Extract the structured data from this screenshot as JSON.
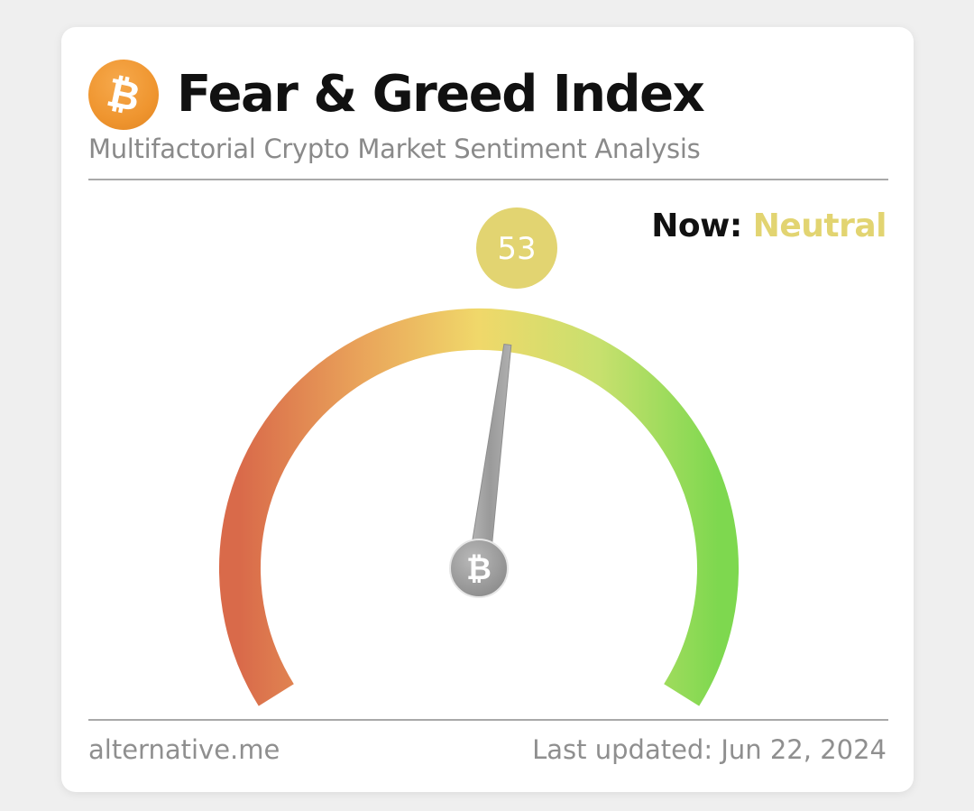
{
  "header": {
    "logo_icon": "bitcoin-icon",
    "logo_symbol": "₿",
    "title": "Fear & Greed Index",
    "subtitle": "Multifactorial Crypto Market Sentiment Analysis"
  },
  "status": {
    "now_label": "Now:",
    "now_value": "Neutral",
    "now_color": "#e2d471"
  },
  "gauge": {
    "value": 53,
    "value_text": "53",
    "min": 0,
    "max": 100,
    "value_badge_color": "#e2d471",
    "arc_colors": [
      "#d96a4a",
      "#e9a35a",
      "#f0d86a",
      "#c8e06e",
      "#7ed84f"
    ],
    "needle_color": "#a0a0a0",
    "hub_icon": "bitcoin-icon",
    "hub_symbol": "₿"
  },
  "footer": {
    "source": "alternative.me",
    "updated": "Last updated: Jun 22, 2024"
  }
}
